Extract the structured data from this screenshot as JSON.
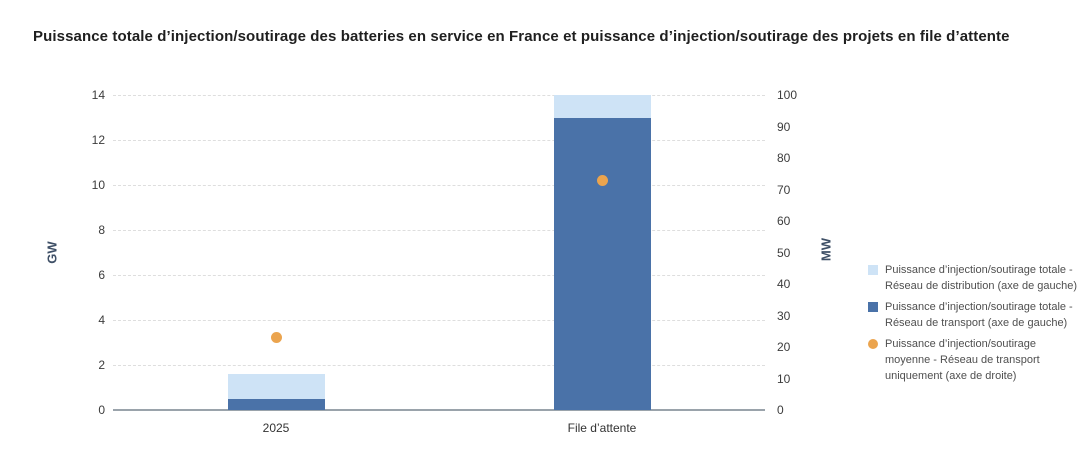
{
  "title": "Puissance totale d’injection/soutirage des batteries en service en France et puissance d’injection/soutirage des projets en file d’attente",
  "chart_data": {
    "type": "bar",
    "title": "Puissance totale d’injection/soutirage des batteries en service en France et puissance d’injection/soutirage des projets en file d’attente",
    "categories": [
      "2025",
      "File d’attente"
    ],
    "series": [
      {
        "name": "Puissance d’injection/soutirage totale - Réseau de distribution (axe de gauche)",
        "kind": "bar",
        "stack": "top",
        "axis": "left",
        "unit": "GW",
        "color": "#cee3f6",
        "values": [
          1.1,
          1.0
        ]
      },
      {
        "name": "Puissance d’injection/soutirage totale - Réseau de transport (axe de gauche)",
        "kind": "bar",
        "stack": "bottom",
        "axis": "left",
        "unit": "GW",
        "color": "#4a72a8",
        "values": [
          0.5,
          13.0
        ]
      },
      {
        "name": "Puissance d’injection/soutirage moyenne - Réseau de transport uniquement (axe de droite)",
        "kind": "point",
        "axis": "right",
        "unit": "MW",
        "color": "#eba44e",
        "values": [
          23,
          73
        ]
      }
    ],
    "stack_totals": [
      1.6,
      14.0
    ],
    "left_axis": {
      "label": "GW",
      "min": 0,
      "max": 14,
      "step": 2
    },
    "right_axis": {
      "label": "MW",
      "min": 0,
      "max": 100,
      "step": 10
    },
    "grid": "horizontal dashed",
    "legend_position": "right"
  }
}
